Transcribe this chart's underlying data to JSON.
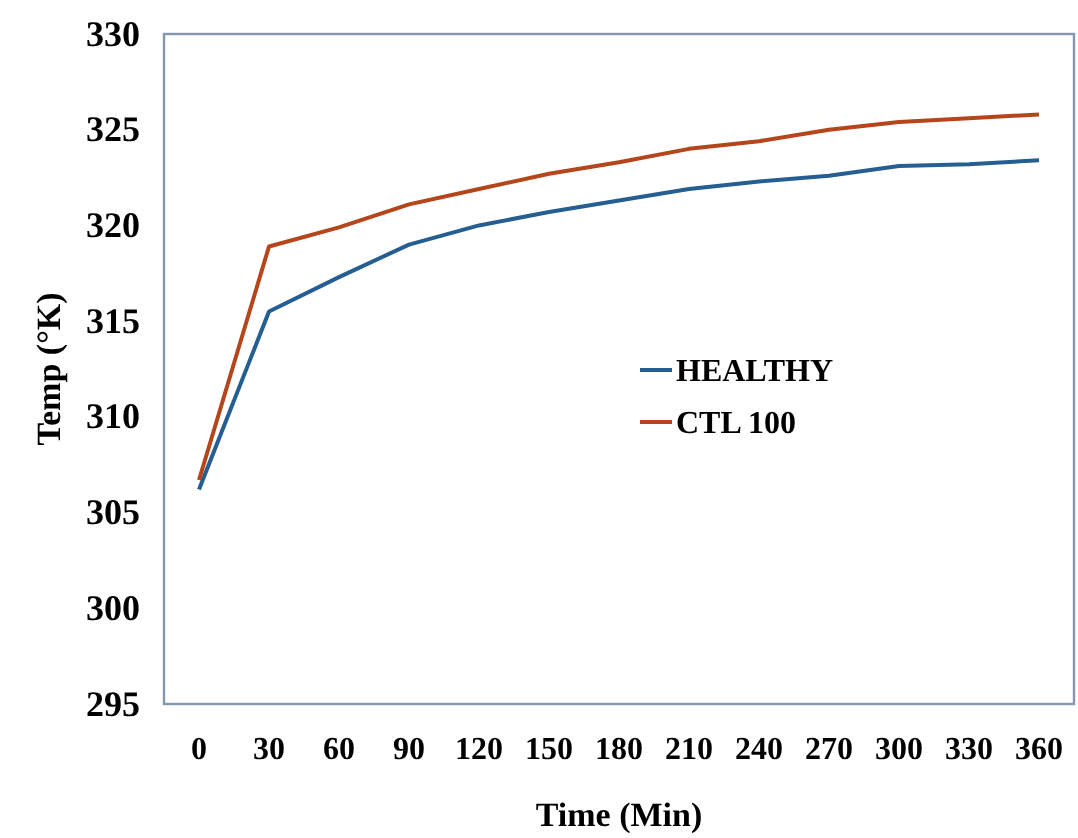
{
  "chart_data": {
    "type": "line",
    "xlabel": "Time (Min)",
    "ylabel": "Temp (°K)",
    "categories": [
      "0",
      "30",
      "60",
      "90",
      "120",
      "150",
      "180",
      "210",
      "240",
      "270",
      "300",
      "330",
      "360"
    ],
    "ylim": [
      295,
      330
    ],
    "yticks": [
      295,
      300,
      305,
      310,
      315,
      320,
      325,
      330
    ],
    "grid": false,
    "legend": "right",
    "marker": "none",
    "line_style": "solid",
    "series": [
      {
        "name": "HEALTHY",
        "color": "#255e91",
        "values": [
          306.2,
          315.5,
          317.3,
          319.0,
          320.0,
          320.7,
          321.3,
          321.9,
          322.3,
          322.6,
          323.1,
          323.2,
          323.4
        ]
      },
      {
        "name": "CTL 100",
        "color": "#b5451b",
        "values": [
          306.7,
          318.9,
          319.9,
          321.1,
          321.9,
          322.7,
          323.3,
          324.0,
          324.4,
          325.0,
          325.4,
          325.6,
          325.8
        ]
      }
    ]
  }
}
